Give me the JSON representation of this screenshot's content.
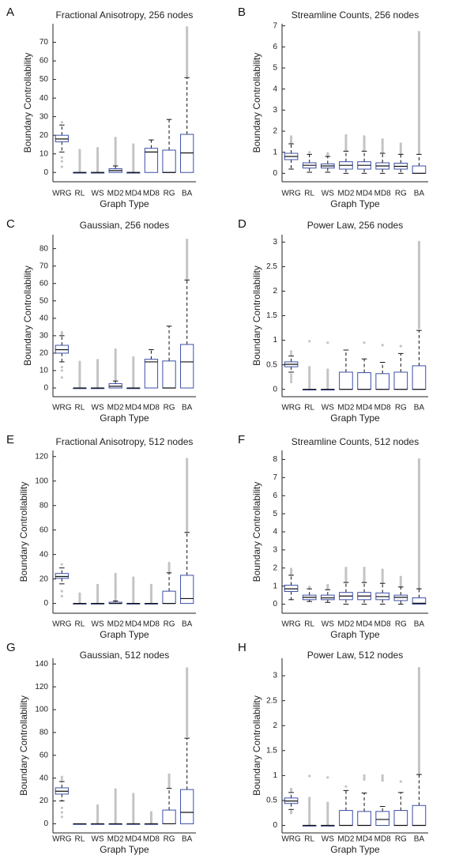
{
  "colors": {
    "box": "#3d4fa8",
    "median": "#111111",
    "whisker": "#111111",
    "outlier": "#c4c4c4",
    "axis": "#222222"
  },
  "chart_data": [
    {
      "panel": "A",
      "type": "box",
      "title": "Fractional Anisotropy, 256 nodes",
      "xlabel": "Graph Type",
      "ylabel": "Boundary Controllability",
      "ylim": [
        -5,
        80
      ],
      "yticks": [
        0,
        10,
        20,
        30,
        40,
        50,
        60,
        70
      ],
      "categories": [
        "WRG",
        "RL",
        "WS",
        "MD2",
        "MD4",
        "MD8",
        "RG",
        "BA"
      ],
      "boxes": [
        {
          "q1": 16.5,
          "median": 18,
          "q3": 20,
          "wlo": 11,
          "whi": 25.5,
          "outliers": [
            3,
            6,
            8,
            27
          ]
        },
        {
          "q1": 0,
          "median": 0,
          "q3": 0,
          "wlo": 0,
          "whi": 0,
          "outlier_range": [
            0.5,
            12
          ]
        },
        {
          "q1": 0,
          "median": 0,
          "q3": 0,
          "wlo": 0,
          "whi": 0,
          "outlier_range": [
            0.5,
            13
          ]
        },
        {
          "q1": 0,
          "median": 1,
          "q3": 2,
          "wlo": 0,
          "whi": 3.5,
          "outlier_range": [
            4,
            18.5
          ]
        },
        {
          "q1": 0,
          "median": 0,
          "q3": 0,
          "wlo": 0,
          "whi": 0,
          "outlier_range": [
            0.5,
            15
          ]
        },
        {
          "q1": 0,
          "median": 11,
          "q3": 13,
          "wlo": 0,
          "whi": 17.5,
          "outliers": []
        },
        {
          "q1": 0,
          "median": 0,
          "q3": 12,
          "wlo": 0,
          "whi": 28.5,
          "outliers": []
        },
        {
          "q1": 0,
          "median": 10.5,
          "q3": 20.5,
          "wlo": 0,
          "whi": 51,
          "outlier_range": [
            52,
            78
          ]
        }
      ]
    },
    {
      "panel": "B",
      "type": "box",
      "title": "Streamline Counts, 256 nodes",
      "xlabel": "Graph Type",
      "ylabel": "Boundary Controllability",
      "ylim": [
        -0.4,
        7.1
      ],
      "yticks": [
        0,
        1,
        2,
        3,
        4,
        5,
        6,
        7
      ],
      "categories": [
        "WRG",
        "RL",
        "WS",
        "MD2",
        "MD4",
        "MD8",
        "RG",
        "BA"
      ],
      "boxes": [
        {
          "q1": 0.65,
          "median": 0.8,
          "q3": 0.95,
          "wlo": 0.2,
          "whi": 1.4,
          "outlier_range": [
            1.45,
            1.75
          ]
        },
        {
          "q1": 0.25,
          "median": 0.38,
          "q3": 0.5,
          "wlo": 0.05,
          "whi": 0.9,
          "outliers": [
            1.0
          ]
        },
        {
          "q1": 0.25,
          "median": 0.35,
          "q3": 0.45,
          "wlo": 0.05,
          "whi": 0.8,
          "outlier_range": [
            0.85,
            0.95
          ]
        },
        {
          "q1": 0.2,
          "median": 0.38,
          "q3": 0.55,
          "wlo": 0,
          "whi": 1.05,
          "outlier_range": [
            1.1,
            1.8
          ]
        },
        {
          "q1": 0.2,
          "median": 0.38,
          "q3": 0.55,
          "wlo": 0,
          "whi": 1.05,
          "outlier_range": [
            1.1,
            1.75
          ]
        },
        {
          "q1": 0.2,
          "median": 0.35,
          "q3": 0.5,
          "wlo": 0,
          "whi": 0.95,
          "outlier_range": [
            1.0,
            1.6
          ]
        },
        {
          "q1": 0.2,
          "median": 0.33,
          "q3": 0.48,
          "wlo": 0,
          "whi": 0.9,
          "outlier_range": [
            0.95,
            1.4
          ]
        },
        {
          "q1": 0,
          "median": 0,
          "q3": 0.35,
          "wlo": 0,
          "whi": 0.9,
          "outlier_range": [
            0.95,
            6.7
          ]
        }
      ]
    },
    {
      "panel": "C",
      "type": "box",
      "title": "Gaussian, 256 nodes",
      "xlabel": "Graph Type",
      "ylabel": "Boundary Controllability",
      "ylim": [
        -5,
        88
      ],
      "yticks": [
        0,
        10,
        20,
        30,
        40,
        50,
        60,
        70,
        80
      ],
      "categories": [
        "WRG",
        "RL",
        "WS",
        "MD2",
        "MD4",
        "MD8",
        "RG",
        "BA"
      ],
      "boxes": [
        {
          "q1": 20,
          "median": 22,
          "q3": 24.5,
          "wlo": 15,
          "whi": 30,
          "outliers": [
            6,
            10,
            12,
            31,
            32
          ]
        },
        {
          "q1": 0,
          "median": 0,
          "q3": 0,
          "wlo": 0,
          "whi": 0,
          "outlier_range": [
            0.5,
            15
          ]
        },
        {
          "q1": 0,
          "median": 0,
          "q3": 0,
          "wlo": 0,
          "whi": 0,
          "outlier_range": [
            0.5,
            16
          ]
        },
        {
          "q1": 0,
          "median": 1,
          "q3": 2.5,
          "wlo": 0,
          "whi": 4,
          "outlier_range": [
            5,
            22
          ]
        },
        {
          "q1": 0,
          "median": 0,
          "q3": 0,
          "wlo": 0,
          "whi": 0,
          "outlier_range": [
            0.5,
            17.5
          ]
        },
        {
          "q1": 0,
          "median": 15,
          "q3": 16.5,
          "wlo": 0,
          "whi": 22,
          "outliers": []
        },
        {
          "q1": 0,
          "median": 0,
          "q3": 15.5,
          "wlo": 0,
          "whi": 35.5,
          "outliers": []
        },
        {
          "q1": 0,
          "median": 15,
          "q3": 25,
          "wlo": 0,
          "whi": 62,
          "outlier_range": [
            63,
            85
          ]
        }
      ]
    },
    {
      "panel": "D",
      "type": "box",
      "title": "Power Law, 256 nodes",
      "xlabel": "Graph Type",
      "ylabel": "Boundary Controllability",
      "ylim": [
        -0.15,
        3.15
      ],
      "yticks": [
        0,
        0.5,
        1,
        1.5,
        2,
        2.5,
        3
      ],
      "categories": [
        "WRG",
        "RL",
        "WS",
        "MD2",
        "MD4",
        "MD8",
        "RG",
        "BA"
      ],
      "boxes": [
        {
          "q1": 0.46,
          "median": 0.51,
          "q3": 0.56,
          "wlo": 0.35,
          "whi": 0.68,
          "outliers": [
            0.15,
            0.2,
            0.25,
            0.3,
            0.72,
            0.77
          ]
        },
        {
          "q1": 0,
          "median": 0,
          "q3": 0,
          "wlo": 0,
          "whi": 0,
          "outlier_range": [
            0.02,
            0.45
          ],
          "outliers": [
            0.98
          ]
        },
        {
          "q1": 0,
          "median": 0,
          "q3": 0,
          "wlo": 0,
          "whi": 0,
          "outlier_range": [
            0.02,
            0.4
          ],
          "outliers": [
            0.95
          ]
        },
        {
          "q1": 0,
          "median": 0,
          "q3": 0.35,
          "wlo": 0,
          "whi": 0.8,
          "outliers": []
        },
        {
          "q1": 0,
          "median": 0,
          "q3": 0.34,
          "wlo": 0,
          "whi": 0.62,
          "outliers": [
            0.95
          ]
        },
        {
          "q1": 0,
          "median": 0,
          "q3": 0.32,
          "wlo": 0,
          "whi": 0.55,
          "outliers": [
            0.9
          ]
        },
        {
          "q1": 0,
          "median": 0,
          "q3": 0.35,
          "wlo": 0,
          "whi": 0.73,
          "outliers": [
            0.88
          ]
        },
        {
          "q1": 0,
          "median": 0,
          "q3": 0.48,
          "wlo": 0,
          "whi": 1.2,
          "outlier_range": [
            1.25,
            3.0
          ]
        }
      ]
    },
    {
      "panel": "E",
      "type": "box",
      "title": "Fractional Anisotropy, 512 nodes",
      "xlabel": "Graph Type",
      "ylabel": "Boundary Controllability",
      "ylim": [
        -8,
        125
      ],
      "yticks": [
        0,
        20,
        40,
        60,
        80,
        100,
        120
      ],
      "categories": [
        "WRG",
        "RL",
        "WS",
        "MD2",
        "MD4",
        "MD8",
        "RG",
        "BA"
      ],
      "boxes": [
        {
          "q1": 20.5,
          "median": 22,
          "q3": 24.5,
          "wlo": 16,
          "whi": 29,
          "outliers": [
            6,
            10,
            32
          ]
        },
        {
          "q1": 0,
          "median": 0,
          "q3": 0,
          "wlo": 0,
          "whi": 0,
          "outlier_range": [
            0.5,
            8
          ]
        },
        {
          "q1": 0,
          "median": 0,
          "q3": 0,
          "wlo": 0,
          "whi": 0,
          "outlier_range": [
            0.5,
            15
          ]
        },
        {
          "q1": 0,
          "median": 0,
          "q3": 1,
          "wlo": 0,
          "whi": 2,
          "outlier_range": [
            3,
            24
          ]
        },
        {
          "q1": 0,
          "median": 0,
          "q3": 0,
          "wlo": 0,
          "whi": 0,
          "outlier_range": [
            0.5,
            21
          ]
        },
        {
          "q1": 0,
          "median": 0,
          "q3": 0,
          "wlo": 0,
          "whi": 0,
          "outlier_range": [
            0.5,
            15
          ]
        },
        {
          "q1": 0,
          "median": 0,
          "q3": 10,
          "wlo": 0,
          "whi": 25,
          "outlier_range": [
            26,
            33
          ]
        },
        {
          "q1": 0,
          "median": 4,
          "q3": 23,
          "wlo": 0,
          "whi": 58,
          "outlier_range": [
            59,
            118
          ]
        }
      ]
    },
    {
      "panel": "F",
      "type": "box",
      "title": "Streamline Counts, 512 nodes",
      "xlabel": "Graph Type",
      "ylabel": "Boundary Controllability",
      "ylim": [
        -0.5,
        8.5
      ],
      "yticks": [
        0,
        1,
        2,
        3,
        4,
        5,
        6,
        7,
        8
      ],
      "categories": [
        "WRG",
        "RL",
        "WS",
        "MD2",
        "MD4",
        "MD8",
        "RG",
        "BA"
      ],
      "boxes": [
        {
          "q1": 0.7,
          "median": 0.85,
          "q3": 1.05,
          "wlo": 0.25,
          "whi": 1.6,
          "outlier_range": [
            1.65,
            1.95
          ]
        },
        {
          "q1": 0.25,
          "median": 0.38,
          "q3": 0.5,
          "wlo": 0.15,
          "whi": 0.85,
          "outliers": [
            0.95
          ]
        },
        {
          "q1": 0.25,
          "median": 0.35,
          "q3": 0.5,
          "wlo": 0.1,
          "whi": 0.8,
          "outlier_range": [
            0.85,
            1.05
          ]
        },
        {
          "q1": 0.25,
          "median": 0.45,
          "q3": 0.65,
          "wlo": 0,
          "whi": 1.2,
          "outlier_range": [
            1.25,
            2.0
          ]
        },
        {
          "q1": 0.25,
          "median": 0.45,
          "q3": 0.65,
          "wlo": 0,
          "whi": 1.2,
          "outlier_range": [
            1.25,
            2.0
          ]
        },
        {
          "q1": 0.25,
          "median": 0.42,
          "q3": 0.62,
          "wlo": 0,
          "whi": 1.15,
          "outlier_range": [
            1.2,
            1.9
          ]
        },
        {
          "q1": 0.2,
          "median": 0.38,
          "q3": 0.5,
          "wlo": 0,
          "whi": 0.95,
          "outlier_range": [
            1.0,
            1.5
          ]
        },
        {
          "q1": 0,
          "median": 0.05,
          "q3": 0.35,
          "wlo": 0,
          "whi": 0.85,
          "outlier_range": [
            0.9,
            8.0
          ]
        }
      ]
    },
    {
      "panel": "G",
      "type": "box",
      "title": "Gaussian, 512 nodes",
      "xlabel": "Graph Type",
      "ylabel": "Boundary Controllability",
      "ylim": [
        -8,
        145
      ],
      "yticks": [
        0,
        20,
        40,
        60,
        80,
        100,
        120,
        140
      ],
      "categories": [
        "WRG",
        "RL",
        "WS",
        "MD2",
        "MD4",
        "MD8",
        "RG",
        "BA"
      ],
      "boxes": [
        {
          "q1": 26,
          "median": 28.5,
          "q3": 31.5,
          "wlo": 20,
          "whi": 37,
          "outliers": [
            6,
            10,
            14,
            39,
            41
          ]
        },
        {
          "q1": 0,
          "median": 0,
          "q3": 0,
          "wlo": 0,
          "whi": 0,
          "outliers": []
        },
        {
          "q1": 0,
          "median": 0,
          "q3": 0,
          "wlo": 0,
          "whi": 0,
          "outlier_range": [
            1,
            16
          ]
        },
        {
          "q1": 0,
          "median": 0,
          "q3": 0,
          "wlo": 0,
          "whi": 0,
          "outlier_range": [
            1,
            30
          ]
        },
        {
          "q1": 0,
          "median": 0,
          "q3": 0,
          "wlo": 0,
          "whi": 0,
          "outlier_range": [
            1,
            26
          ]
        },
        {
          "q1": 0,
          "median": 0,
          "q3": 0,
          "wlo": 0,
          "whi": 0,
          "outlier_range": [
            1,
            10
          ]
        },
        {
          "q1": 0,
          "median": 0,
          "q3": 12,
          "wlo": 0,
          "whi": 31,
          "outlier_range": [
            32,
            43
          ]
        },
        {
          "q1": 0,
          "median": 10,
          "q3": 30,
          "wlo": 0,
          "whi": 75,
          "outlier_range": [
            77,
            136
          ]
        }
      ]
    },
    {
      "panel": "H",
      "type": "box",
      "title": "Power Law, 512 nodes",
      "xlabel": "Graph Type",
      "ylabel": "Boundary Controllability",
      "ylim": [
        -0.15,
        3.35
      ],
      "yticks": [
        0,
        0.5,
        1,
        1.5,
        2,
        2.5,
        3
      ],
      "categories": [
        "WRG",
        "RL",
        "WS",
        "MD2",
        "MD4",
        "MD8",
        "RG",
        "BA"
      ],
      "boxes": [
        {
          "q1": 0.44,
          "median": 0.49,
          "q3": 0.55,
          "wlo": 0.32,
          "whi": 0.66,
          "outliers": [
            0.25,
            0.28,
            0.7,
            0.73
          ]
        },
        {
          "q1": 0,
          "median": 0,
          "q3": 0,
          "wlo": 0,
          "whi": 0,
          "outlier_range": [
            0.02,
            0.55
          ],
          "outliers": [
            0.99
          ]
        },
        {
          "q1": 0,
          "median": 0,
          "q3": 0,
          "wlo": 0,
          "whi": 0,
          "outlier_range": [
            0.02,
            0.45
          ],
          "outliers": [
            0.96
          ]
        },
        {
          "q1": 0,
          "median": 0,
          "q3": 0.3,
          "wlo": 0,
          "whi": 0.7,
          "outliers": [
            0.78
          ]
        },
        {
          "q1": 0,
          "median": 0,
          "q3": 0.28,
          "wlo": 0,
          "whi": 0.65,
          "outlier_range": [
            0.92,
            1.0
          ]
        },
        {
          "q1": 0,
          "median": 0.12,
          "q3": 0.28,
          "wlo": 0,
          "whi": 0.38,
          "outlier_range": [
            0.9,
            1.0
          ]
        },
        {
          "q1": 0,
          "median": 0,
          "q3": 0.3,
          "wlo": 0,
          "whi": 0.66,
          "outliers": [
            0.88
          ]
        },
        {
          "q1": 0,
          "median": 0,
          "q3": 0.4,
          "wlo": 0,
          "whi": 1.02,
          "outlier_range": [
            1.05,
            3.15
          ]
        }
      ]
    }
  ]
}
